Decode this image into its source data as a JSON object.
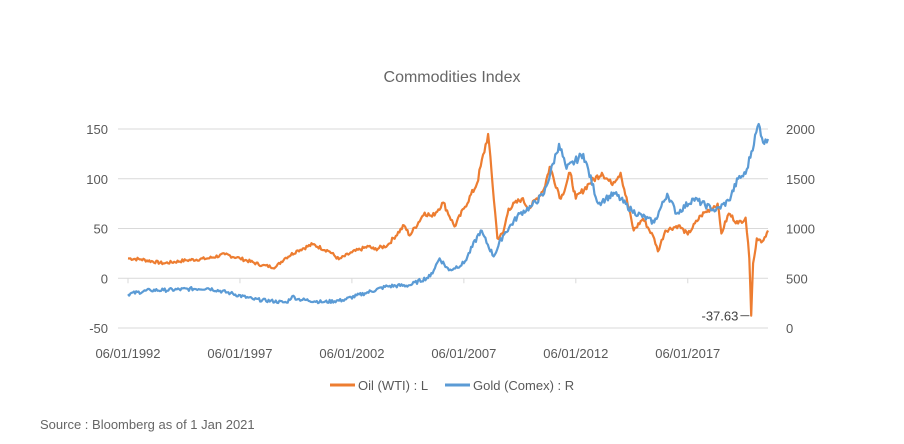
{
  "chart_data": {
    "type": "line",
    "title": "Commodities Index",
    "x_tick_labels": [
      "06/01/1992",
      "06/01/1997",
      "06/01/2002",
      "06/01/2007",
      "06/01/2012",
      "06/01/2017"
    ],
    "x_ticks": [
      "1992-06-01",
      "1997-06-01",
      "2002-06-01",
      "2007-06-01",
      "2012-06-01",
      "2017-06-01"
    ],
    "xlim": [
      "1992-06-01",
      "2021-01-01"
    ],
    "y_left": {
      "lim": [
        -50,
        150
      ],
      "ticks": [
        "-50",
        "0",
        "50",
        "100",
        "150"
      ]
    },
    "y_right": {
      "lim": [
        0,
        2000
      ],
      "ticks": [
        "0",
        "500",
        "1000",
        "1500",
        "2000"
      ]
    },
    "grid": true,
    "legend_placement": "bottom",
    "annotation": {
      "text": "-37.63",
      "date": "2020-04-20",
      "value": -37.63
    },
    "series": [
      {
        "name": "Oil (WTI) : L",
        "axis": "left",
        "color": "#ED7D31",
        "points": [
          [
            "1992-06",
            20
          ],
          [
            "1993-01",
            19
          ],
          [
            "1994-01",
            15
          ],
          [
            "1995-01",
            18
          ],
          [
            "1996-01",
            20
          ],
          [
            "1996-10",
            24
          ],
          [
            "1997-06",
            20
          ],
          [
            "1998-06",
            13
          ],
          [
            "1999-01",
            11
          ],
          [
            "1999-06",
            20
          ],
          [
            "2000-01",
            28
          ],
          [
            "2000-09",
            34
          ],
          [
            "2001-06",
            27
          ],
          [
            "2001-11",
            19
          ],
          [
            "2002-06",
            26
          ],
          [
            "2003-03",
            32
          ],
          [
            "2003-06",
            29
          ],
          [
            "2004-01",
            33
          ],
          [
            "2004-10",
            53
          ],
          [
            "2005-01",
            43
          ],
          [
            "2005-09",
            66
          ],
          [
            "2006-01",
            62
          ],
          [
            "2006-07",
            76
          ],
          [
            "2007-01",
            52
          ],
          [
            "2007-06",
            70
          ],
          [
            "2008-01",
            95
          ],
          [
            "2008-07",
            145
          ],
          [
            "2008-12",
            40
          ],
          [
            "2009-03",
            45
          ],
          [
            "2009-06",
            70
          ],
          [
            "2010-01",
            80
          ],
          [
            "2010-05",
            70
          ],
          [
            "2011-01",
            90
          ],
          [
            "2011-04",
            112
          ],
          [
            "2011-10",
            80
          ],
          [
            "2012-03",
            106
          ],
          [
            "2012-06",
            80
          ],
          [
            "2013-01",
            95
          ],
          [
            "2013-08",
            106
          ],
          [
            "2014-01",
            95
          ],
          [
            "2014-06",
            106
          ],
          [
            "2015-01",
            48
          ],
          [
            "2015-06",
            60
          ],
          [
            "2015-12",
            40
          ],
          [
            "2016-02",
            27
          ],
          [
            "2016-06",
            48
          ],
          [
            "2017-01",
            53
          ],
          [
            "2017-06",
            44
          ],
          [
            "2018-01",
            63
          ],
          [
            "2018-10",
            75
          ],
          [
            "2018-12",
            45
          ],
          [
            "2019-04",
            65
          ],
          [
            "2019-09",
            55
          ],
          [
            "2020-01",
            61
          ],
          [
            "2020-03",
            20
          ],
          [
            "2020-04",
            -37.63
          ],
          [
            "2020-05",
            15
          ],
          [
            "2020-07",
            40
          ],
          [
            "2020-10",
            37
          ],
          [
            "2021-01",
            48
          ]
        ]
      },
      {
        "name": "Gold (Comex) : R",
        "axis": "right",
        "color": "#5B9BD5",
        "points": [
          [
            "1992-06",
            340
          ],
          [
            "1993-06",
            380
          ],
          [
            "1994-01",
            380
          ],
          [
            "1996-01",
            400
          ],
          [
            "1997-01",
            350
          ],
          [
            "1998-01",
            290
          ],
          [
            "1999-07",
            255
          ],
          [
            "1999-10",
            320
          ],
          [
            "2000-01",
            290
          ],
          [
            "2001-03",
            260
          ],
          [
            "2002-01",
            280
          ],
          [
            "2003-01",
            350
          ],
          [
            "2004-01",
            420
          ],
          [
            "2005-01",
            430
          ],
          [
            "2005-12",
            520
          ],
          [
            "2006-05",
            700
          ],
          [
            "2006-10",
            580
          ],
          [
            "2007-06",
            650
          ],
          [
            "2008-03",
            980
          ],
          [
            "2008-10",
            720
          ],
          [
            "2009-03",
            930
          ],
          [
            "2009-12",
            1150
          ],
          [
            "2010-06",
            1220
          ],
          [
            "2011-01",
            1350
          ],
          [
            "2011-09",
            1850
          ],
          [
            "2012-01",
            1600
          ],
          [
            "2012-10",
            1750
          ],
          [
            "2013-06",
            1250
          ],
          [
            "2013-10",
            1300
          ],
          [
            "2014-03",
            1350
          ],
          [
            "2014-12",
            1180
          ],
          [
            "2015-12",
            1060
          ],
          [
            "2016-07",
            1350
          ],
          [
            "2016-12",
            1150
          ],
          [
            "2017-09",
            1300
          ],
          [
            "2018-09",
            1180
          ],
          [
            "2019-04",
            1280
          ],
          [
            "2019-09",
            1500
          ],
          [
            "2020-01",
            1550
          ],
          [
            "2020-08",
            2050
          ],
          [
            "2020-11",
            1850
          ],
          [
            "2021-01",
            1900
          ]
        ]
      }
    ]
  },
  "source": "Source : Bloomberg as of 1 Jan 2021"
}
